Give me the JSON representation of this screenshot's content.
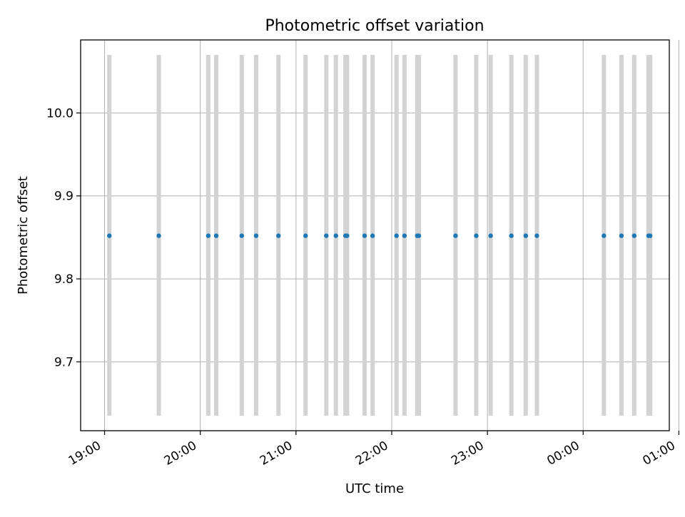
{
  "chart_data": {
    "type": "scatter",
    "title": "Photometric offset variation",
    "xlabel": "UTC time",
    "ylabel": "Photometric offset",
    "x_axis": {
      "kind": "time",
      "range": [
        "18:45",
        "00:54"
      ],
      "ticks": [
        "19:00",
        "20:00",
        "21:00",
        "22:00",
        "23:00",
        "00:00",
        "01:00"
      ]
    },
    "y_axis": {
      "range": [
        9.617,
        10.088
      ],
      "ticks": [
        "9.7",
        "9.8",
        "9.9",
        "10.0"
      ]
    },
    "grid": true,
    "colors": {
      "points": "#1f77b4",
      "bars": "#d3d3d3",
      "grid": "#b0b0b0"
    },
    "error_bars": {
      "low": 9.635,
      "high": 10.07
    },
    "series": [
      {
        "x": [
          "19:03",
          "19:34",
          "20:05",
          "20:10",
          "20:26",
          "20:35",
          "20:49",
          "21:06",
          "21:19",
          "21:25",
          "21:31",
          "21:32",
          "21:43",
          "21:48",
          "22:03",
          "22:08",
          "22:16",
          "22:17",
          "22:40",
          "22:53",
          "23:02",
          "23:15",
          "23:24",
          "23:31",
          "00:13",
          "00:24",
          "00:32",
          "00:41",
          "00:42"
        ],
        "y": [
          9.852,
          9.852,
          9.852,
          9.852,
          9.852,
          9.852,
          9.852,
          9.852,
          9.852,
          9.852,
          9.852,
          9.852,
          9.852,
          9.852,
          9.852,
          9.852,
          9.852,
          9.852,
          9.852,
          9.852,
          9.852,
          9.852,
          9.852,
          9.852,
          9.852,
          9.852,
          9.852,
          9.852,
          9.852
        ]
      }
    ]
  }
}
